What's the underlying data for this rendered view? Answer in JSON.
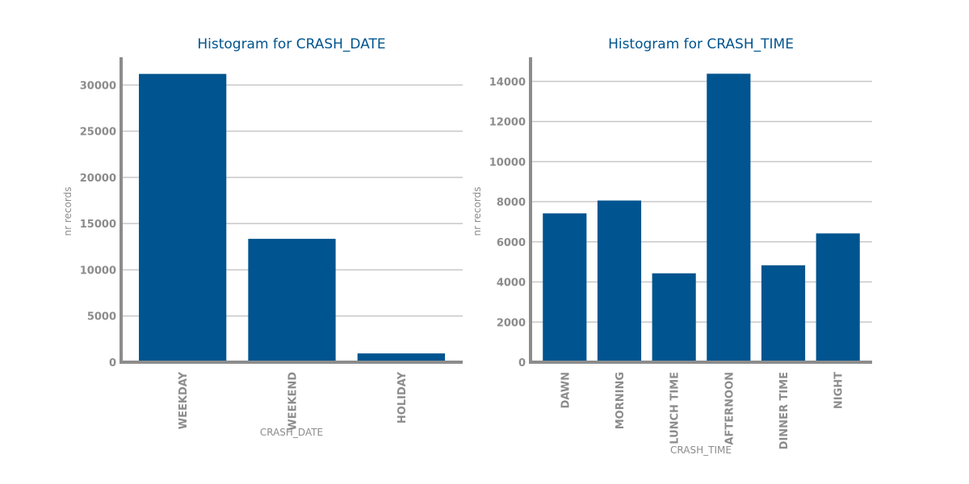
{
  "chart_data": [
    {
      "type": "bar",
      "title": "Histogram for CRASH_DATE",
      "xlabel": "CRASH_DATE",
      "ylabel": "nr records",
      "categories": [
        "WEEKDAY",
        "WEEKEND",
        "HOLIDAY"
      ],
      "values": [
        31200,
        13350,
        950
      ],
      "ylim": [
        0,
        33000
      ],
      "yticks": [
        0,
        5000,
        10000,
        15000,
        20000,
        25000,
        30000
      ],
      "grid": "horizontal",
      "bar_color": "#00548f"
    },
    {
      "type": "bar",
      "title": "Histogram for CRASH_TIME",
      "xlabel": "CRASH_TIME",
      "ylabel": "nr records",
      "categories": [
        "DAWN",
        "MORNING",
        "LUNCH TIME",
        "AFTERNOON",
        "DINNER TIME",
        "NIGHT"
      ],
      "values": [
        7420,
        8060,
        4430,
        14380,
        4830,
        6420
      ],
      "ylim": [
        0,
        15200
      ],
      "yticks": [
        0,
        2000,
        4000,
        6000,
        8000,
        10000,
        12000,
        14000
      ],
      "grid": "horizontal",
      "bar_color": "#00548f"
    }
  ]
}
